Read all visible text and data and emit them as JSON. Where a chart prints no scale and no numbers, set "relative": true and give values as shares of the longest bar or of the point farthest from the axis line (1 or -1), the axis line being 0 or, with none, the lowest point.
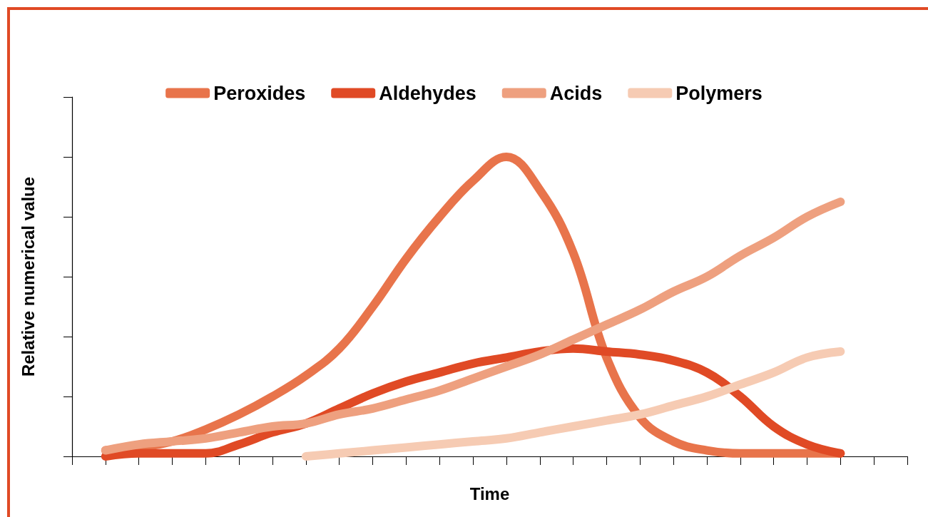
{
  "chart_data": {
    "type": "line",
    "relative": true,
    "xlabel": "Time",
    "ylabel": "Relative numerical value",
    "legend": "top",
    "marker": "none",
    "line_style": "solid",
    "categories": [
      null,
      null,
      null,
      null,
      null,
      null,
      null,
      null,
      null,
      null,
      null,
      null,
      null,
      null,
      null,
      null,
      null,
      null,
      null,
      null,
      null,
      null,
      null,
      null,
      null,
      null
    ],
    "series": [
      {
        "name": "Peroxides",
        "color": "#e8744b",
        "values": [
          null,
          0.02,
          0.03,
          0.05,
          0.09,
          0.14,
          0.2,
          0.27,
          0.36,
          0.5,
          0.66,
          0.8,
          0.92,
          1,
          0.89,
          0.68,
          0.33,
          0.13,
          0.05,
          0.02,
          0.01,
          0.01,
          0.01,
          0.01,
          null,
          null
        ]
      },
      {
        "name": "Aldehydes",
        "color": "#e04a25",
        "values": [
          null,
          0,
          0.01,
          0.01,
          0.01,
          0.04,
          0.08,
          0.11,
          0.16,
          0.21,
          0.25,
          0.28,
          0.31,
          0.33,
          0.35,
          0.36,
          0.35,
          0.34,
          0.32,
          0.28,
          0.2,
          0.1,
          0.04,
          0.01,
          null,
          null
        ]
      },
      {
        "name": "Acids",
        "color": "#eea07f",
        "values": [
          null,
          0.02,
          0.04,
          0.05,
          0.06,
          0.08,
          0.1,
          0.11,
          0.14,
          0.16,
          0.19,
          0.22,
          0.26,
          0.3,
          0.34,
          0.39,
          0.44,
          0.49,
          0.55,
          0.6,
          0.67,
          0.73,
          0.8,
          0.85,
          null,
          null
        ]
      },
      {
        "name": "Polymers",
        "color": "#f6cbb3",
        "values": [
          null,
          null,
          null,
          null,
          null,
          null,
          null,
          0,
          0.01,
          0.02,
          0.03,
          0.04,
          0.05,
          0.06,
          0.08,
          0.1,
          0.12,
          0.14,
          0.17,
          0.2,
          0.24,
          0.28,
          0.33,
          0.35,
          null,
          null
        ]
      }
    ]
  }
}
